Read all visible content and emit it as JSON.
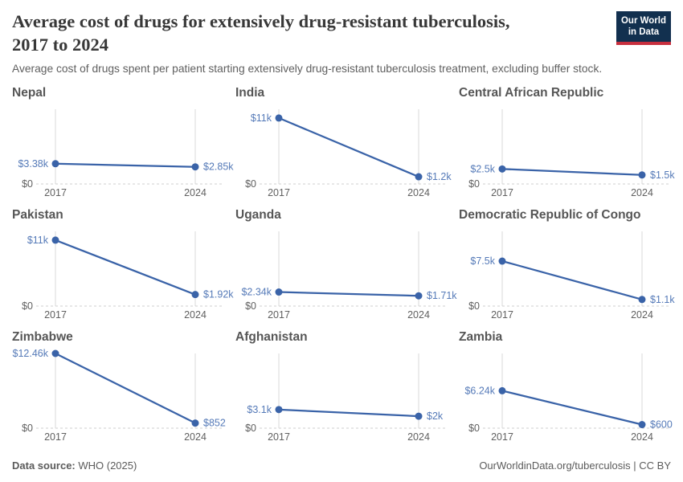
{
  "header": {
    "title_line1": "Average cost of drugs for extensively drug-resistant tuberculosis,",
    "title_line2": "2017 to 2024",
    "subtitle": "Average cost of drugs spent per patient starting extensively drug-resistant tuberculosis treatment, excluding buffer stock."
  },
  "logo": {
    "line1": "Our World",
    "line2": "in Data"
  },
  "colors": {
    "series": "#3a63a8",
    "value_label": "#557ab8",
    "grid": "#d9d9d9",
    "zero_line": "#cfcfcf",
    "axis_text": "#606060",
    "logo_bg": "#12304f",
    "logo_red": "#c72f3e"
  },
  "chart_data": {
    "type": "line",
    "title": "Average cost of drugs for extensively drug-resistant tuberculosis, 2017 to 2024",
    "subtitle": "Average cost of drugs spent per patient starting extensively drug-resistant tuberculosis treatment, excluding buffer stock.",
    "x": [
      "2017",
      "2024"
    ],
    "ylim": [
      0,
      12460
    ],
    "grid": "partial",
    "legend_position": "none",
    "axis": {
      "zero_label": "$0",
      "x_labels": [
        "2017",
        "2024"
      ]
    },
    "panels": [
      {
        "title": "Nepal",
        "values": [
          3380,
          2850
        ],
        "labels": [
          "$3.38k",
          "$2.85k"
        ]
      },
      {
        "title": "India",
        "values": [
          11000,
          1200
        ],
        "labels": [
          "$11k",
          "$1.2k"
        ]
      },
      {
        "title": "Central African Republic",
        "values": [
          2500,
          1500
        ],
        "labels": [
          "$2.5k",
          "$1.5k"
        ]
      },
      {
        "title": "Pakistan",
        "values": [
          11000,
          1920
        ],
        "labels": [
          "$11k",
          "$1.92k"
        ]
      },
      {
        "title": "Uganda",
        "values": [
          2340,
          1710
        ],
        "labels": [
          "$2.34k",
          "$1.71k"
        ]
      },
      {
        "title": "Democratic Republic of Congo",
        "values": [
          7500,
          1100
        ],
        "labels": [
          "$7.5k",
          "$1.1k"
        ]
      },
      {
        "title": "Zimbabwe",
        "values": [
          12460,
          852
        ],
        "labels": [
          "$12.46k",
          "$852"
        ]
      },
      {
        "title": "Afghanistan",
        "values": [
          3100,
          2000
        ],
        "labels": [
          "$3.1k",
          "$2k"
        ]
      },
      {
        "title": "Zambia",
        "values": [
          6240,
          600
        ],
        "labels": [
          "$6.24k",
          "$600"
        ]
      }
    ]
  },
  "footer": {
    "datasource_label": "Data source:",
    "datasource_value": " WHO (2025)",
    "url_text": "OurWorldinData.org/tuberculosis",
    "license_text": " | CC BY"
  }
}
